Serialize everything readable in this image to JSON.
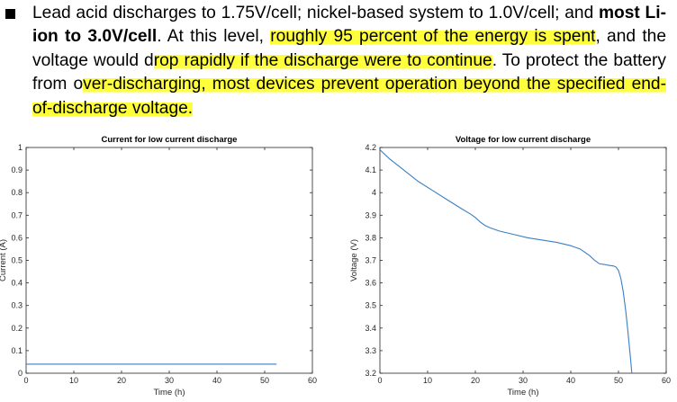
{
  "paragraph": {
    "s1a": "Lead acid discharges to 1.75V/cell; nickel-based system to 1.0V/cell; and ",
    "s1b": "most Li-ion to 3.0V/cell",
    "s1c": ". At this level, ",
    "h1": "roughly 95 percent of the energy is spent",
    "s2": ", and the voltage would d",
    "h2": "rop rapidly if the discharge were to continue",
    "s3": ". To protect the battery from o",
    "h3": "ver-discharging, most devices prevent operation beyond the specified end-of-discharge voltage."
  },
  "chart_data": [
    {
      "type": "line",
      "title": "Current for low current discharge",
      "xlabel": "Time (h)",
      "ylabel": "Current (A)",
      "xlim": [
        0,
        60
      ],
      "ylim": [
        0,
        1
      ],
      "xticks": [
        0,
        10,
        20,
        30,
        40,
        50,
        60
      ],
      "yticks": [
        0,
        0.1,
        0.2,
        0.3,
        0.4,
        0.5,
        0.6,
        0.7,
        0.8,
        0.9,
        1
      ],
      "xtick_labels": [
        "0",
        "10",
        "20",
        "30",
        "40",
        "50",
        "60"
      ],
      "ytick_labels": [
        "0",
        "0.1",
        "0.2",
        "0.3",
        "0.4",
        "0.5",
        "0.6",
        "0.7",
        "0.8",
        "0.9",
        "1"
      ],
      "series": [
        {
          "color": "#3b7fc4",
          "x": [
            0,
            52.5
          ],
          "y": [
            0.04,
            0.04
          ]
        }
      ]
    },
    {
      "type": "line",
      "title": "Voltage for low current discharge",
      "xlabel": "Time (h)",
      "ylabel": "Voltage (V)",
      "xlim": [
        0,
        60
      ],
      "ylim": [
        3.2,
        4.2
      ],
      "xticks": [
        0,
        10,
        20,
        30,
        40,
        50,
        60
      ],
      "yticks": [
        3.2,
        3.3,
        3.4,
        3.5,
        3.6,
        3.7,
        3.8,
        3.9,
        4,
        4.1,
        4.2
      ],
      "xtick_labels": [
        "0",
        "10",
        "20",
        "30",
        "40",
        "50",
        "60"
      ],
      "ytick_labels": [
        "3.2",
        "3.3",
        "3.4",
        "3.5",
        "3.6",
        "3.7",
        "3.8",
        "3.9",
        "4",
        "4.1",
        "4.2"
      ],
      "series": [
        {
          "color": "#3b7fc4",
          "x": [
            0,
            2,
            5,
            8,
            11,
            14,
            17,
            19,
            20,
            21,
            22,
            23,
            25,
            28,
            31,
            34,
            37,
            40,
            42,
            43,
            44,
            45,
            46,
            47,
            48,
            49,
            49.5,
            50,
            50.5,
            51,
            51.5,
            52,
            52.5,
            52.8
          ],
          "y": [
            4.19,
            4.15,
            4.1,
            4.05,
            4.01,
            3.97,
            3.93,
            3.905,
            3.89,
            3.87,
            3.855,
            3.845,
            3.83,
            3.815,
            3.8,
            3.79,
            3.78,
            3.765,
            3.75,
            3.735,
            3.72,
            3.7,
            3.685,
            3.682,
            3.678,
            3.675,
            3.67,
            3.655,
            3.62,
            3.56,
            3.48,
            3.38,
            3.27,
            3.2
          ]
        }
      ]
    }
  ]
}
